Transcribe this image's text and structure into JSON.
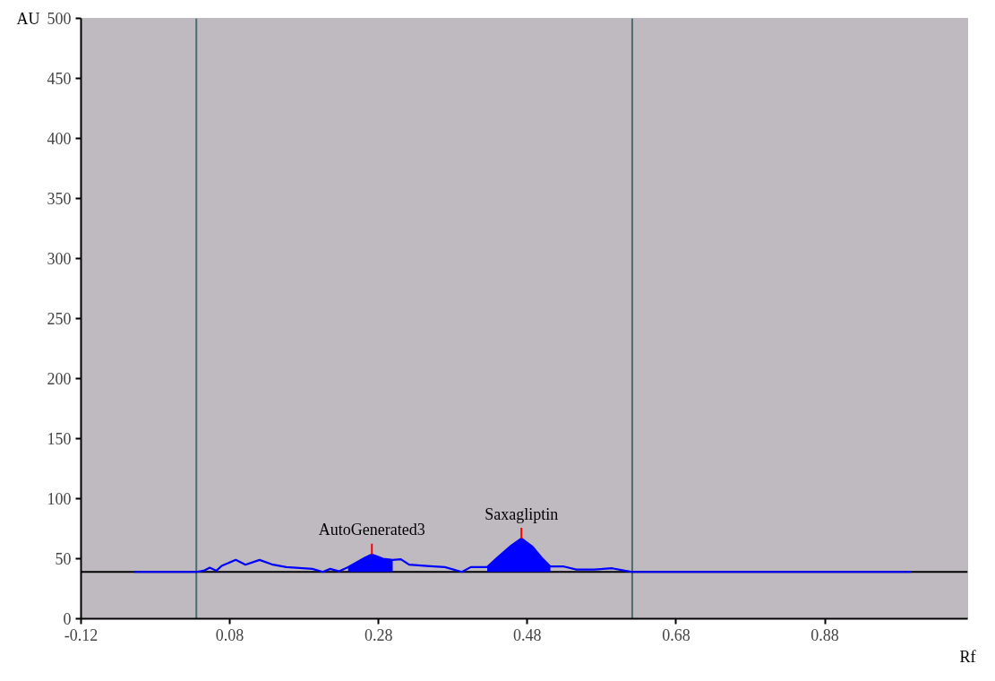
{
  "chart_data": {
    "type": "line",
    "xlabel": "Rf",
    "ylabel": "AU",
    "xlim": [
      -0.12,
      1.072
    ],
    "ylim": [
      0,
      500
    ],
    "xticks": [
      {
        "value": -0.12,
        "label": "-0.12"
      },
      {
        "value": 0.08,
        "label": "0.08"
      },
      {
        "value": 0.28,
        "label": "0.28"
      },
      {
        "value": 0.48,
        "label": "0.48"
      },
      {
        "value": 0.68,
        "label": "0.68"
      },
      {
        "value": 0.88,
        "label": "0.88"
      }
    ],
    "yticks": [
      0,
      50,
      100,
      150,
      200,
      250,
      300,
      350,
      400,
      450,
      500
    ],
    "grid": false,
    "marker": "none",
    "line_style": "solid",
    "series": [
      {
        "color": "#0000ff",
        "x": [
          -0.048,
          0.035,
          0.045,
          0.053,
          0.062,
          0.069,
          0.088,
          0.101,
          0.12,
          0.138,
          0.156,
          0.191,
          0.205,
          0.215,
          0.227,
          0.239,
          0.262,
          0.271,
          0.286,
          0.299,
          0.31,
          0.321,
          0.345,
          0.369,
          0.392,
          0.404,
          0.426,
          0.44,
          0.458,
          0.472,
          0.487,
          0.499,
          0.511,
          0.529,
          0.546,
          0.57,
          0.594,
          0.611,
          0.621,
          0.996
        ],
        "values": [
          39,
          39,
          40,
          42.5,
          40,
          44,
          49,
          45,
          49,
          45,
          43,
          41.5,
          39,
          41.5,
          39.5,
          43,
          51,
          53.5,
          50,
          49,
          49.5,
          45,
          44,
          43,
          39,
          43,
          43,
          51,
          60.7,
          66.8,
          60,
          51,
          43.5,
          43.5,
          41,
          41,
          42,
          40,
          39,
          39
        ]
      },
      {
        "type": "area",
        "color": "#0000ff",
        "x": [
          0.239,
          0.262,
          0.271,
          0.286,
          0.299
        ],
        "values": [
          43,
          51,
          53.5,
          50,
          49
        ]
      },
      {
        "type": "area",
        "color": "#0000ff",
        "x": [
          0.426,
          0.44,
          0.458,
          0.472,
          0.487,
          0.499,
          0.511
        ],
        "values": [
          43,
          51,
          60.7,
          66.8,
          60,
          51,
          43.5
        ]
      }
    ],
    "ref_lines": [
      {
        "axis": "x",
        "value": 0.035,
        "color": "#4a6e6e",
        "line_style": "solid"
      },
      {
        "axis": "x",
        "value": 0.621,
        "color": "#4a6e6e",
        "line_style": "solid"
      },
      {
        "axis": "y",
        "value": 39,
        "color": "#000000",
        "line_style": "solid"
      }
    ],
    "annotations": [
      {
        "text": "AutoGenerated3",
        "x": 0.271,
        "y": 53.5
      },
      {
        "text": "Saxagliptin",
        "x": 0.472,
        "y": 66.8
      }
    ]
  }
}
